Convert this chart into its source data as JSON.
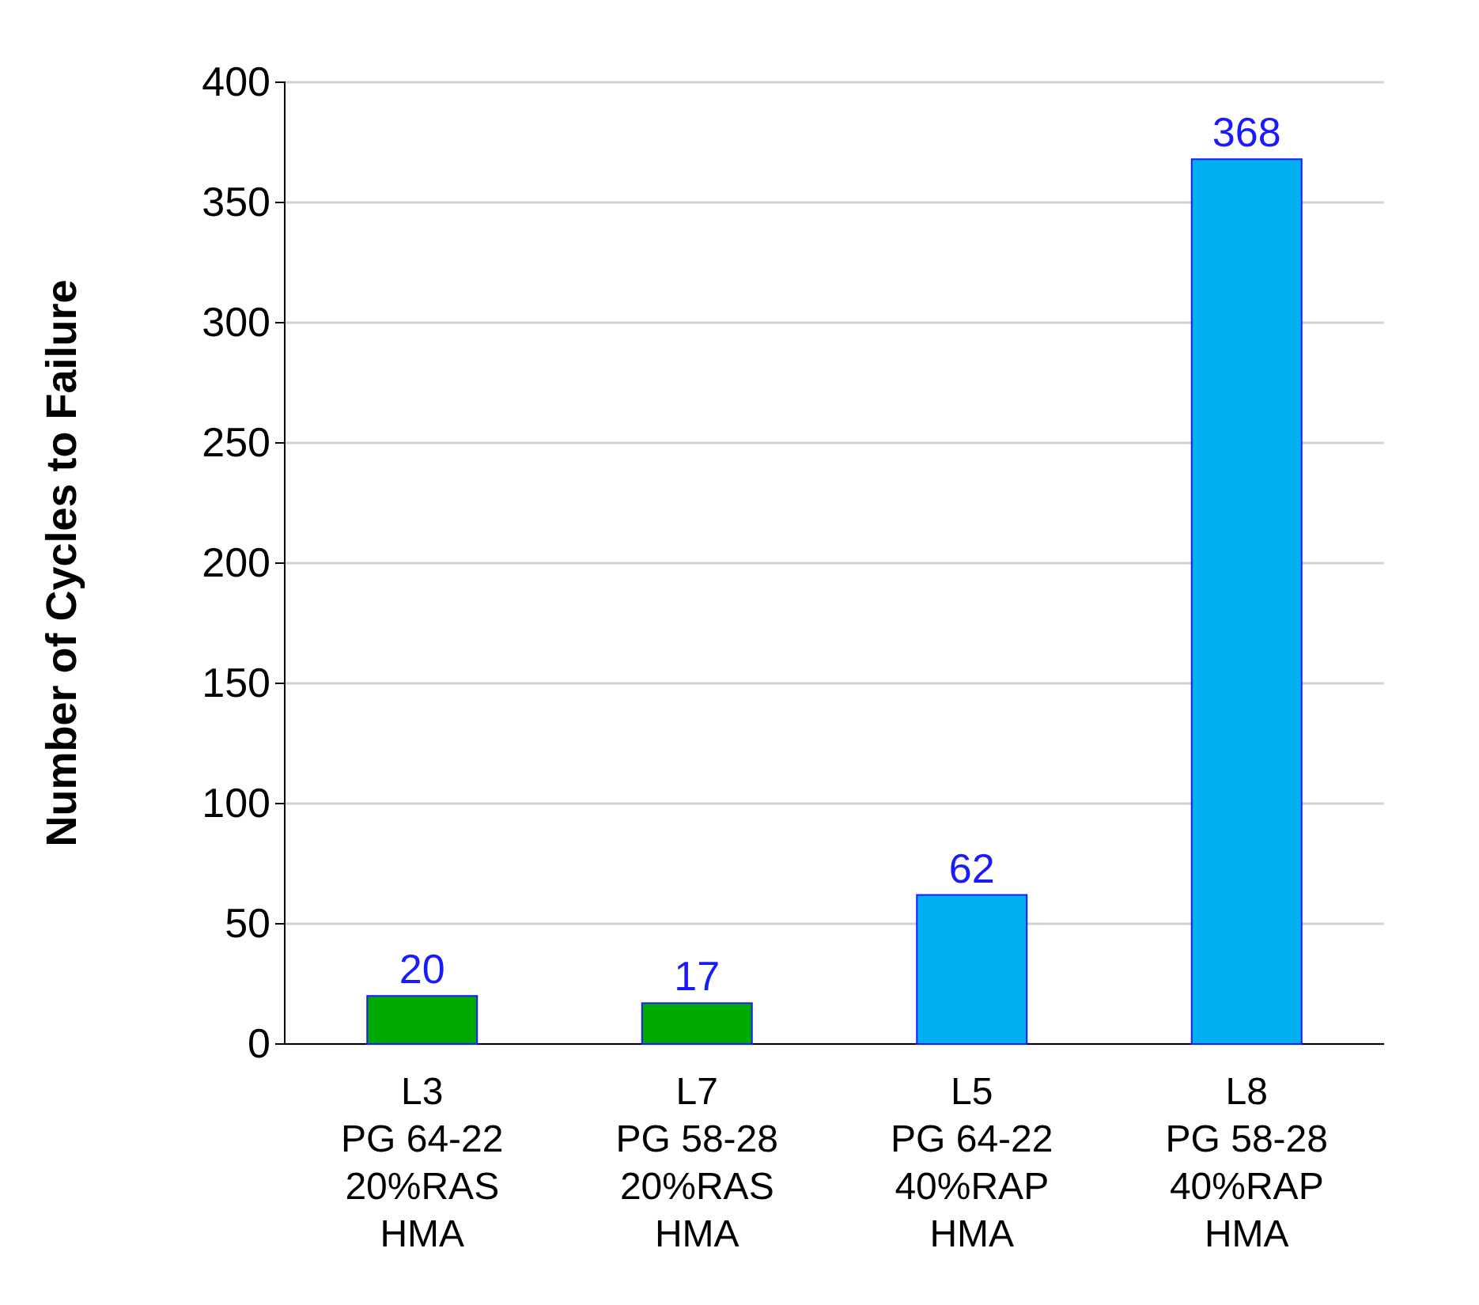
{
  "chart_data": {
    "type": "bar",
    "ylabel": "Number of Cycles to Failure",
    "categories": [
      "L3\nPG 64-22\n20%RAS\nHMA",
      "L7\nPG 58-28\n20%RAS\nHMA",
      "L5\nPG 64-22\n40%RAP\nHMA",
      "L8\nPG 58-28\n40%RAP\nHMA"
    ],
    "values": [
      20,
      17,
      62,
      368
    ],
    "colors": [
      "#00a800",
      "#00a800",
      "#00b0f0",
      "#00b0f0"
    ],
    "ylim": [
      0,
      400
    ],
    "yticks": [
      0,
      50,
      100,
      150,
      200,
      250,
      300,
      350,
      400
    ],
    "grid": "y",
    "data_labels": true
  }
}
